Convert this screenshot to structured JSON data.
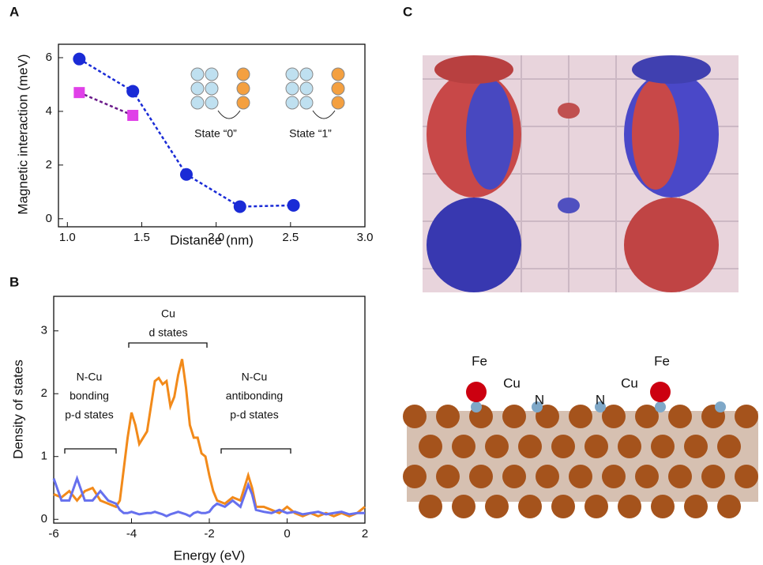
{
  "panel_labels": [
    "A",
    "B",
    "C"
  ],
  "chart_data": [
    {
      "type": "line",
      "x_label": "Distance (nm)",
      "y_label": "Magnetic interaction (meV)",
      "x": [
        1.08,
        1.44,
        1.8,
        2.16,
        2.52
      ],
      "xlim": [
        0.94,
        3.0
      ],
      "xticks": [
        {
          "value": 1,
          "label": "1.0"
        },
        {
          "value": 1.5,
          "label": "1.5"
        },
        {
          "value": 2,
          "label": "2.0"
        },
        {
          "value": 2.5,
          "label": "2.5"
        },
        {
          "value": 3,
          "label": "3.0"
        }
      ],
      "ylim": [
        -0.3,
        6.5
      ],
      "yticks": [
        0,
        2,
        4,
        6
      ],
      "annotations": [
        "State “0”",
        "State “1”"
      ],
      "series": [
        {
          "color": "#1a2bd6",
          "marker": "circle",
          "marker_color": "#1a2bd6",
          "values": [
            5.95,
            4.75,
            1.65,
            0.45,
            0.5
          ]
        },
        {
          "color": "#6a1a8a",
          "marker": "square",
          "marker_color": "#e040e8",
          "values": [
            4.7,
            3.85,
            null,
            null,
            null
          ]
        }
      ]
    },
    {
      "type": "line",
      "x_label": "Energy (eV)",
      "y_label": "Density of states",
      "x": [
        -6,
        -5.8,
        -5.6,
        -5.4,
        -5.2,
        -5,
        -4.8,
        -4.6,
        -4.4,
        -4.3,
        -4.2,
        -4.1,
        -4,
        -3.9,
        -3.8,
        -3.6,
        -3.5,
        -3.4,
        -3.3,
        -3.2,
        -3.1,
        -3,
        -2.9,
        -2.8,
        -2.7,
        -2.6,
        -2.5,
        -2.4,
        -2.3,
        -2.2,
        -2.1,
        -2,
        -1.9,
        -1.8,
        -1.6,
        -1.4,
        -1.2,
        -1,
        -0.9,
        -0.8,
        -0.6,
        -0.4,
        -0.2,
        0,
        0.2,
        0.4,
        0.6,
        0.8,
        1,
        1.2,
        1.4,
        1.6,
        1.8,
        2
      ],
      "xlim": [
        -6,
        2
      ],
      "xticks": [
        -6,
        -4,
        -2,
        0,
        2
      ],
      "ylim": [
        -0.06,
        3.55
      ],
      "yticks": [
        0,
        1,
        2,
        3
      ],
      "annotations": [
        "Cu",
        "d states",
        "N-Cu",
        "bonding",
        "p-d states",
        "N-Cu",
        "antibonding",
        "p-d states"
      ],
      "series": [
        {
          "color": "#f28a1a",
          "values": [
            0.4,
            0.35,
            0.45,
            0.3,
            0.45,
            0.5,
            0.3,
            0.25,
            0.2,
            0.3,
            0.8,
            1.3,
            1.7,
            1.5,
            1.2,
            1.4,
            1.8,
            2.2,
            2.25,
            2.15,
            2.2,
            1.8,
            1.95,
            2.3,
            2.55,
            2.1,
            1.5,
            1.3,
            1.3,
            1.05,
            1.0,
            0.7,
            0.45,
            0.3,
            0.25,
            0.35,
            0.3,
            0.7,
            0.5,
            0.2,
            0.2,
            0.15,
            0.1,
            0.2,
            0.1,
            0.05,
            0.1,
            0.05,
            0.1,
            0.05,
            0.1,
            0.05,
            0.1,
            0.2
          ]
        },
        {
          "color": "#6670ee",
          "values": [
            0.65,
            0.3,
            0.3,
            0.65,
            0.3,
            0.3,
            0.45,
            0.3,
            0.25,
            0.15,
            0.1,
            0.1,
            0.12,
            0.1,
            0.08,
            0.1,
            0.1,
            0.12,
            0.1,
            0.08,
            0.05,
            0.08,
            0.1,
            0.12,
            0.1,
            0.08,
            0.05,
            0.1,
            0.12,
            0.1,
            0.1,
            0.12,
            0.2,
            0.25,
            0.2,
            0.3,
            0.2,
            0.55,
            0.4,
            0.15,
            0.12,
            0.1,
            0.15,
            0.1,
            0.12,
            0.08,
            0.1,
            0.12,
            0.08,
            0.1,
            0.12,
            0.08,
            0.1,
            0.1
          ]
        }
      ]
    }
  ],
  "panel_c": {
    "labels": [
      "Fe",
      "Cu",
      "N",
      "N",
      "Cu",
      "Fe"
    ]
  }
}
